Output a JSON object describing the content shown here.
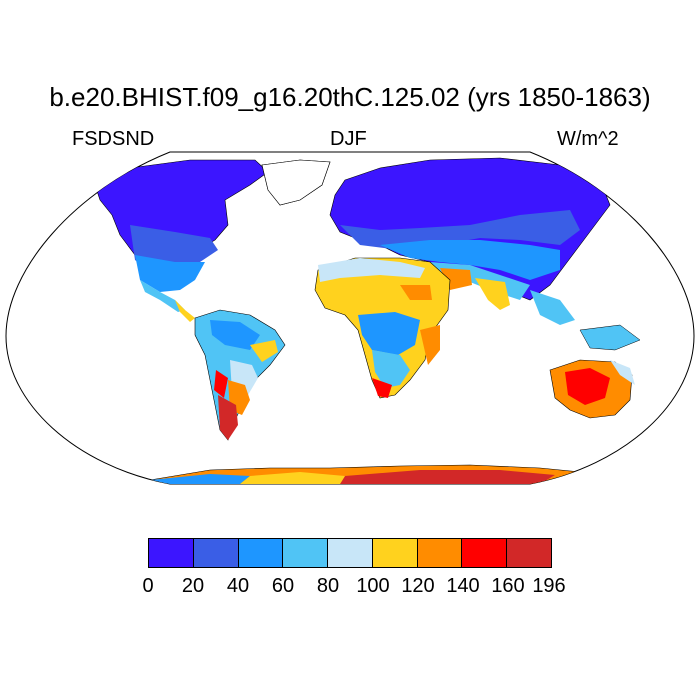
{
  "title": "b.e20.BHIST.f09_g16.20thC.125.02 (yrs 1850-1863)",
  "subtitle_left": "FSDSND",
  "subtitle_center": "DJF",
  "subtitle_right": "W/m^2",
  "colorbar": {
    "ticks": [
      "0",
      "20",
      "40",
      "60",
      "80",
      "100",
      "120",
      "140",
      "160",
      "196"
    ],
    "colors": [
      "#3c15ff",
      "#3a5ee6",
      "#1e96ff",
      "#50c4f5",
      "#c8e6f8",
      "#ffd21e",
      "#ff8c00",
      "#ff0000",
      "#d22828"
    ]
  },
  "map": {
    "projection": "robinson",
    "ocean_color": "#ffffff",
    "coastline_color": "#000000"
  }
}
